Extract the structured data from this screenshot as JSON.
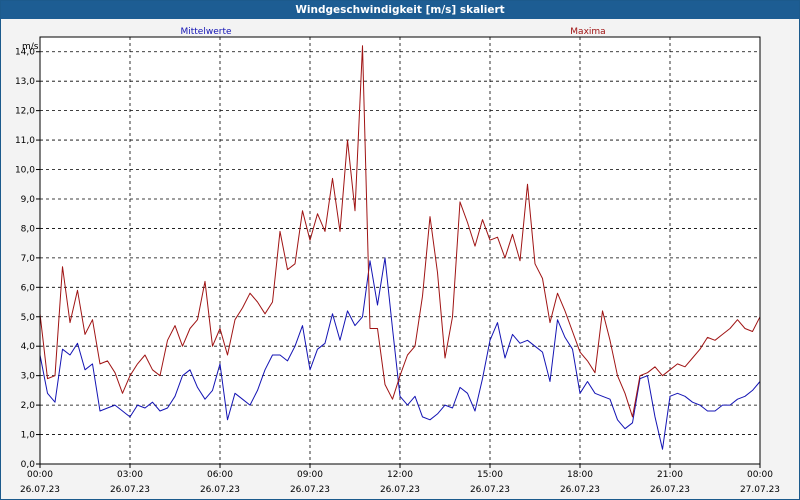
{
  "window": {
    "title": "Windgeschwindigkeit [m/s] skaliert"
  },
  "colors": {
    "mean": "#1414b4",
    "max": "#a01414",
    "grid": "#000000",
    "background": "#ffffff",
    "titlebar": "#1d5d93"
  },
  "chart_data": {
    "type": "line",
    "ylabel": "m/s",
    "ylim": [
      0,
      14.5
    ],
    "xlim": [
      0,
      24
    ],
    "grid": true,
    "legend_placement": "top",
    "y_ticks": [
      "0,0",
      "1,0",
      "2,0",
      "3,0",
      "4,0",
      "5,0",
      "6,0",
      "7,0",
      "8,0",
      "9,0",
      "10,0",
      "11,0",
      "12,0",
      "13,0",
      "14,0"
    ],
    "x_ticks": [
      {
        "time": "00:00",
        "date": "26.07.23"
      },
      {
        "time": "03:00",
        "date": "26.07.23"
      },
      {
        "time": "06:00",
        "date": "26.07.23"
      },
      {
        "time": "09:00",
        "date": "26.07.23"
      },
      {
        "time": "12:00",
        "date": "26.07.23"
      },
      {
        "time": "15:00",
        "date": "26.07.23"
      },
      {
        "time": "18:00",
        "date": "26.07.23"
      },
      {
        "time": "21:00",
        "date": "26.07.23"
      },
      {
        "time": "00:00",
        "date": "27.07.23"
      }
    ],
    "series": [
      {
        "name": "Mittelwerte",
        "color": "#1414b4",
        "x": [
          0.0,
          0.25,
          0.5,
          0.75,
          1.0,
          1.25,
          1.5,
          1.75,
          2.0,
          2.25,
          2.5,
          2.75,
          3.0,
          3.25,
          3.5,
          3.75,
          4.0,
          4.25,
          4.5,
          4.75,
          5.0,
          5.25,
          5.5,
          5.75,
          6.0,
          6.25,
          6.5,
          6.75,
          7.0,
          7.25,
          7.5,
          7.75,
          8.0,
          8.25,
          8.5,
          8.75,
          9.0,
          9.25,
          9.5,
          9.75,
          10.0,
          10.25,
          10.5,
          10.75,
          11.0,
          11.25,
          11.5,
          11.75,
          12.0,
          12.25,
          12.5,
          12.75,
          13.0,
          13.25,
          13.5,
          13.75,
          14.0,
          14.25,
          14.5,
          14.75,
          15.0,
          15.25,
          15.5,
          15.75,
          16.0,
          16.25,
          16.5,
          16.75,
          17.0,
          17.25,
          17.5,
          17.75,
          18.0,
          18.25,
          18.5,
          18.75,
          19.0,
          19.25,
          19.5,
          19.75,
          20.0,
          20.25,
          20.5,
          20.75,
          21.0,
          21.25,
          21.5,
          21.75,
          22.0,
          22.25,
          22.5,
          22.75,
          23.0,
          23.25,
          23.5,
          23.75,
          24.0
        ],
        "y": [
          3.7,
          2.4,
          2.1,
          3.9,
          3.7,
          4.1,
          3.2,
          3.4,
          1.8,
          1.9,
          2.0,
          1.8,
          1.6,
          2.0,
          1.9,
          2.1,
          1.8,
          1.9,
          2.3,
          3.0,
          3.2,
          2.6,
          2.2,
          2.5,
          3.4,
          1.5,
          2.4,
          2.2,
          2.0,
          2.5,
          3.2,
          3.7,
          3.7,
          3.5,
          4.0,
          4.7,
          3.2,
          3.9,
          4.1,
          5.1,
          4.2,
          5.2,
          4.7,
          5.0,
          6.9,
          5.4,
          7.0,
          4.6,
          2.3,
          2.0,
          2.3,
          1.6,
          1.5,
          1.7,
          2.0,
          1.9,
          2.6,
          2.4,
          1.8,
          2.9,
          4.2,
          4.8,
          3.6,
          4.4,
          4.1,
          4.2,
          4.0,
          3.8,
          2.8,
          4.9,
          4.3,
          3.9,
          2.4,
          2.8,
          2.4,
          2.3,
          2.2,
          1.5,
          1.2,
          1.4,
          2.9,
          3.0,
          1.6,
          0.5,
          2.3,
          2.4,
          2.3,
          2.1,
          2.0,
          1.8,
          1.8,
          2.0,
          2.0,
          2.2,
          2.3,
          2.5,
          2.8
        ]
      },
      {
        "name": "Maxima",
        "color": "#a01414",
        "x": [
          0.0,
          0.25,
          0.5,
          0.75,
          1.0,
          1.25,
          1.5,
          1.75,
          2.0,
          2.25,
          2.5,
          2.75,
          3.0,
          3.25,
          3.5,
          3.75,
          4.0,
          4.25,
          4.5,
          4.75,
          5.0,
          5.25,
          5.5,
          5.75,
          6.0,
          6.25,
          6.5,
          6.75,
          7.0,
          7.25,
          7.5,
          7.75,
          8.0,
          8.25,
          8.5,
          8.75,
          9.0,
          9.25,
          9.5,
          9.75,
          10.0,
          10.25,
          10.5,
          10.75,
          11.0,
          11.25,
          11.5,
          11.75,
          12.0,
          12.25,
          12.5,
          12.75,
          13.0,
          13.25,
          13.5,
          13.75,
          14.0,
          14.25,
          14.5,
          14.75,
          15.0,
          15.25,
          15.5,
          15.75,
          16.0,
          16.25,
          16.5,
          16.75,
          17.0,
          17.25,
          17.5,
          17.75,
          18.0,
          18.25,
          18.5,
          18.75,
          19.0,
          19.25,
          19.5,
          19.75,
          20.0,
          20.25,
          20.5,
          20.75,
          21.0,
          21.25,
          21.5,
          21.75,
          22.0,
          22.25,
          22.5,
          22.75,
          23.0,
          23.25,
          23.5,
          23.75,
          24.0
        ],
        "y": [
          5.1,
          2.9,
          3.0,
          6.7,
          4.8,
          5.9,
          4.4,
          4.9,
          3.4,
          3.5,
          3.1,
          2.4,
          3.0,
          3.4,
          3.7,
          3.2,
          3.0,
          4.2,
          4.7,
          4.0,
          4.6,
          4.9,
          6.2,
          4.0,
          4.6,
          3.7,
          4.9,
          5.3,
          5.8,
          5.5,
          5.1,
          5.5,
          7.9,
          6.6,
          6.8,
          8.6,
          7.6,
          8.5,
          7.9,
          9.7,
          7.9,
          11.0,
          8.6,
          14.2,
          4.6,
          4.6,
          2.7,
          2.2,
          3.0,
          3.7,
          4.0,
          5.7,
          8.4,
          6.5,
          3.6,
          5.0,
          8.9,
          8.2,
          7.4,
          8.3,
          7.6,
          7.7,
          7.0,
          7.8,
          6.9,
          9.5,
          6.8,
          6.3,
          4.8,
          5.8,
          5.2,
          4.5,
          3.8,
          3.5,
          3.1,
          5.2,
          4.2,
          3.0,
          2.4,
          1.6,
          3.0,
          3.1,
          3.3,
          3.0,
          3.2,
          3.4,
          3.3,
          3.6,
          3.9,
          4.3,
          4.2,
          4.4,
          4.6,
          4.9,
          4.6,
          4.5,
          5.0
        ]
      }
    ]
  }
}
